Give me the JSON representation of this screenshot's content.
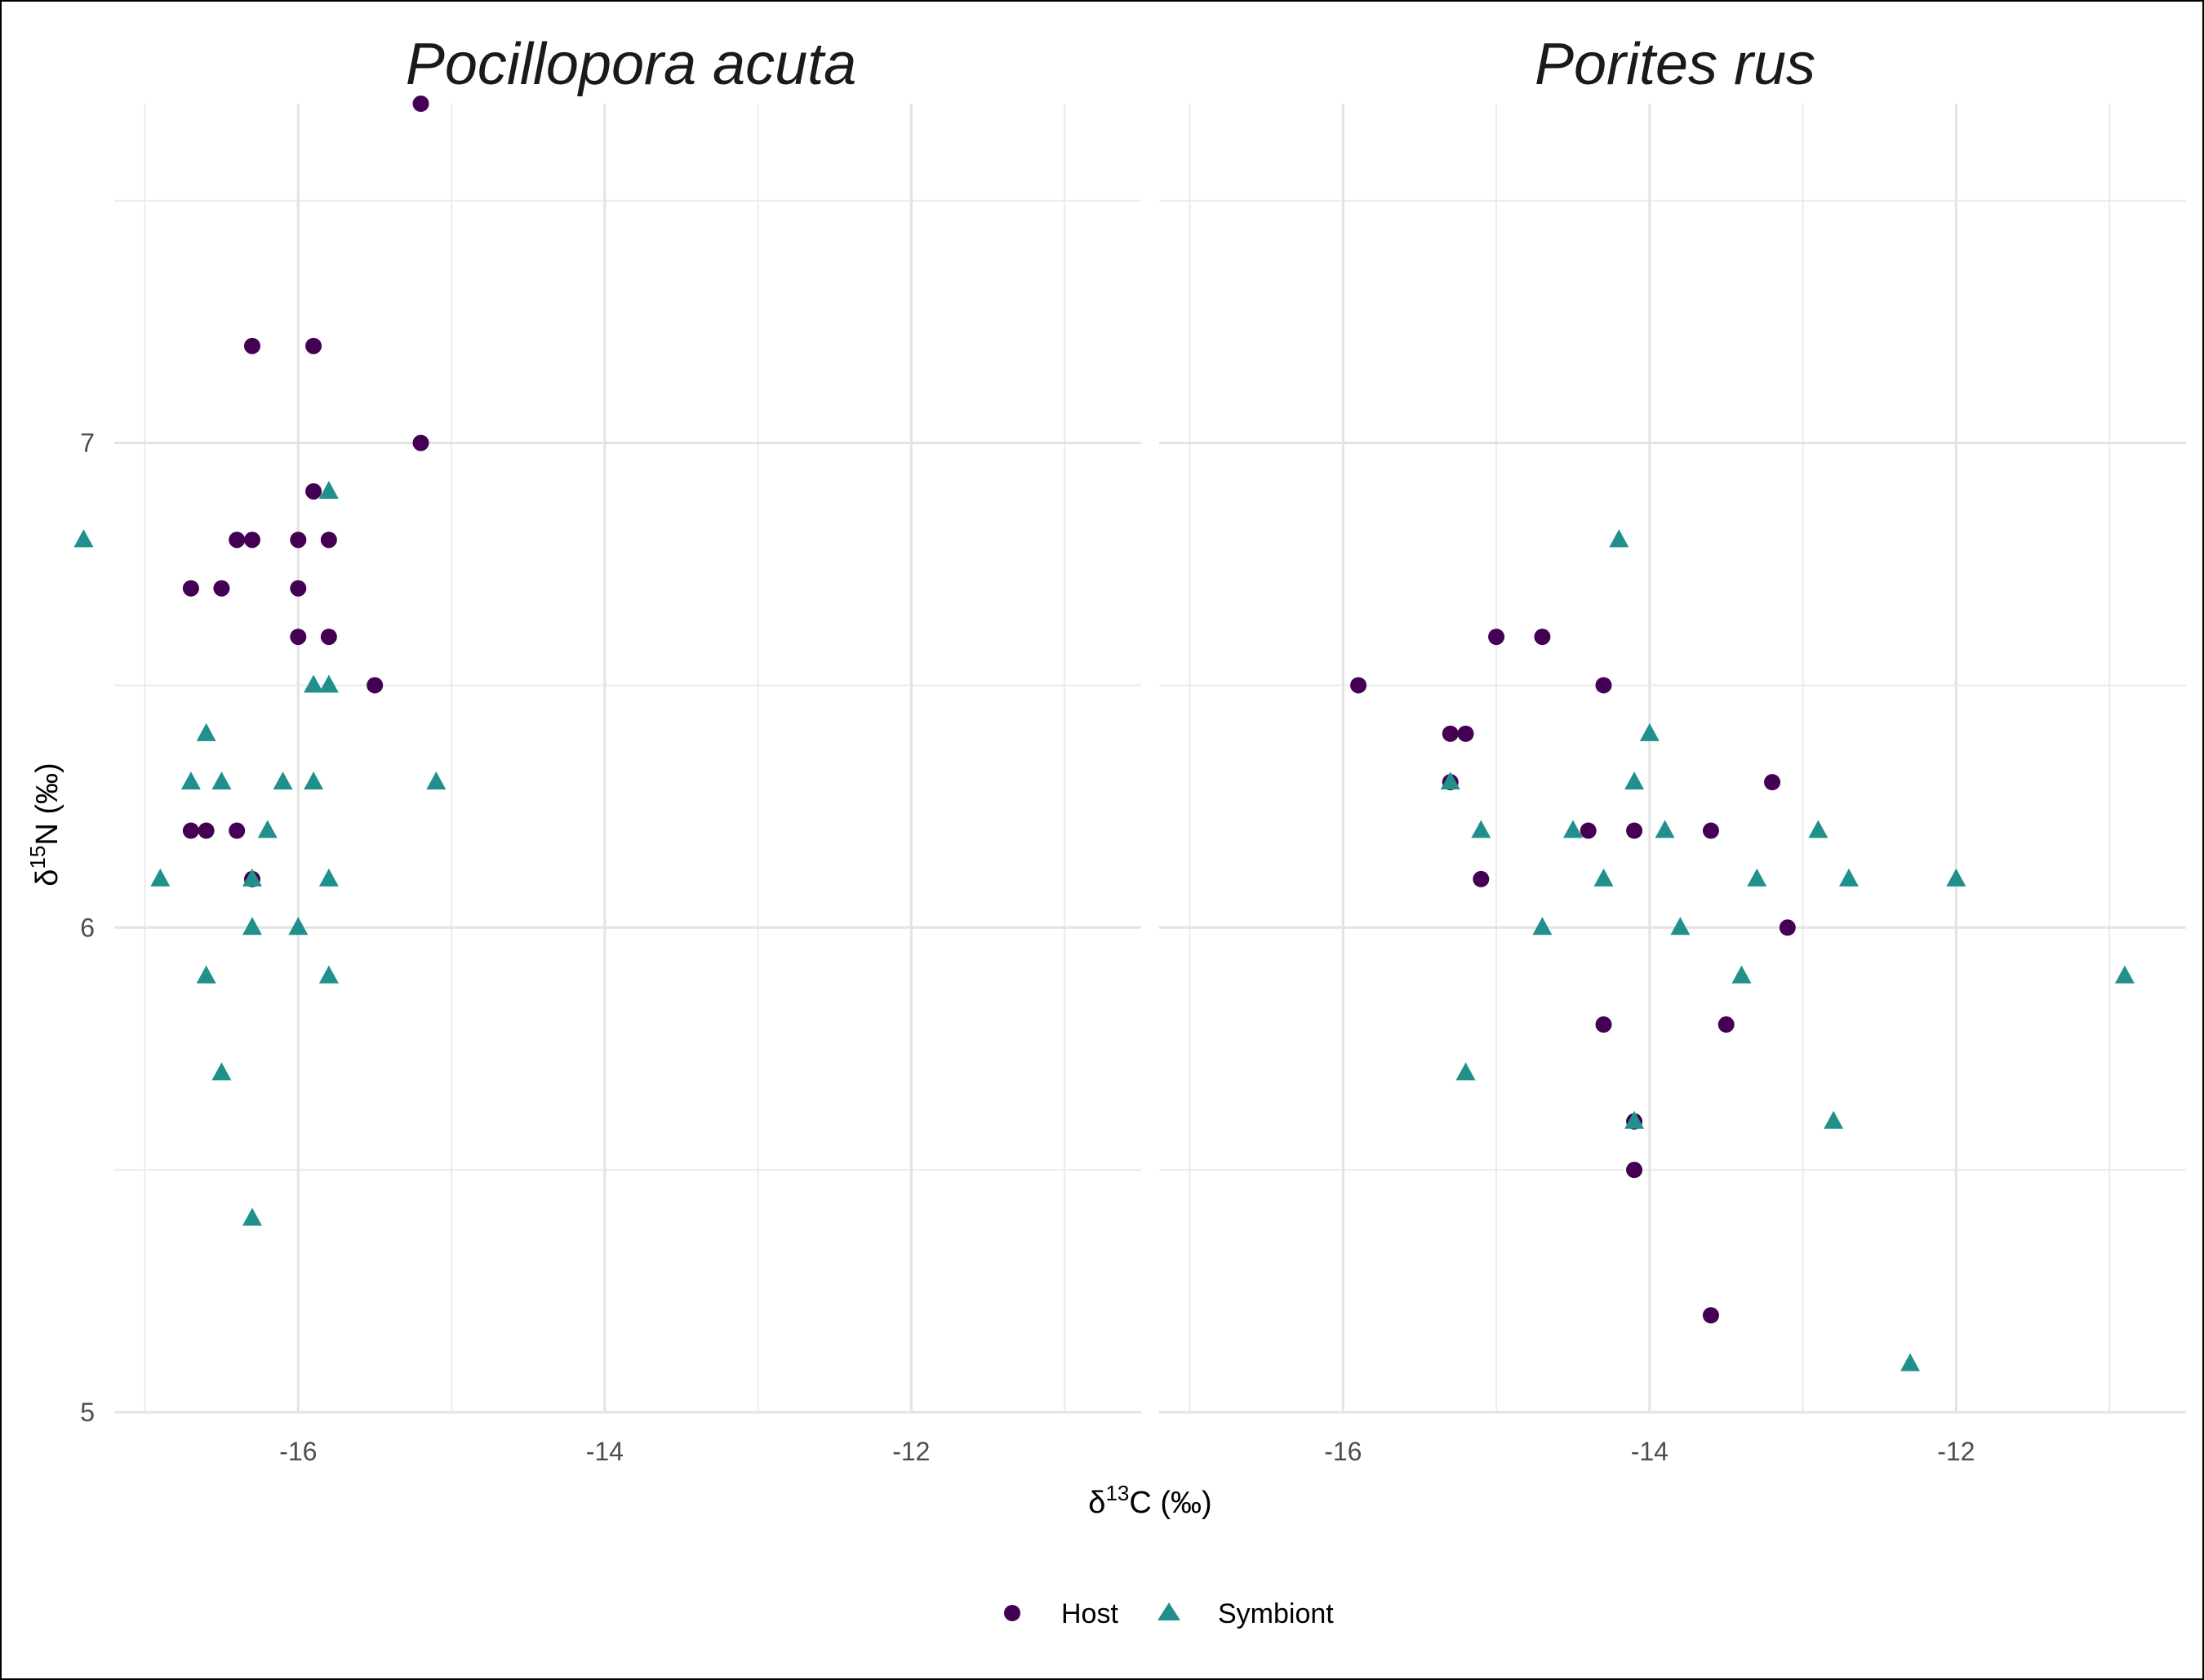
{
  "chart_data": {
    "type": "scatter",
    "xlabel_base": "δ",
    "xlabel_sup": "13",
    "xlabel_rest": "C (‰)",
    "ylabel_base": "δ",
    "ylabel_sup": "15",
    "ylabel_rest": "N (‰)",
    "xlim": [
      -17.2,
      -10.5
    ],
    "ylim": [
      5,
      7.7
    ],
    "x_ticks": [
      -16,
      -14,
      -12
    ],
    "x_tick_labels": [
      "-16",
      "-14",
      "-12"
    ],
    "y_ticks": [
      5,
      6,
      7
    ],
    "y_tick_labels": [
      "5",
      "6",
      "7"
    ],
    "grid": true,
    "legend_position": "bottom",
    "legend": [
      {
        "name": "Host",
        "shape": "circle",
        "color": "#440154"
      },
      {
        "name": "Symbiont",
        "shape": "triangle",
        "color": "#21908C"
      }
    ],
    "panels": [
      {
        "title": "Pocillopora acuta",
        "series": [
          {
            "name": "Host",
            "points": [
              [
                -15.2,
                7.7
              ],
              [
                -16.3,
                7.2
              ],
              [
                -15.9,
                7.2
              ],
              [
                -15.2,
                7.0
              ],
              [
                -15.9,
                6.9
              ],
              [
                -16.4,
                6.8
              ],
              [
                -16.3,
                6.8
              ],
              [
                -16.0,
                6.8
              ],
              [
                -15.8,
                6.8
              ],
              [
                -16.7,
                6.7
              ],
              [
                -16.5,
                6.7
              ],
              [
                -16.0,
                6.7
              ],
              [
                -16.0,
                6.6
              ],
              [
                -15.8,
                6.6
              ],
              [
                -15.5,
                6.5
              ],
              [
                -16.7,
                6.2
              ],
              [
                -16.6,
                6.2
              ],
              [
                -16.4,
                6.2
              ],
              [
                -16.3,
                6.1
              ]
            ]
          },
          {
            "name": "Symbiont",
            "points": [
              [
                -17.4,
                6.8
              ],
              [
                -15.8,
                6.9
              ],
              [
                -15.9,
                6.5
              ],
              [
                -15.8,
                6.5
              ],
              [
                -16.6,
                6.4
              ],
              [
                -16.7,
                6.3
              ],
              [
                -16.5,
                6.3
              ],
              [
                -16.1,
                6.3
              ],
              [
                -15.9,
                6.3
              ],
              [
                -15.1,
                6.3
              ],
              [
                -16.2,
                6.2
              ],
              [
                -16.9,
                6.1
              ],
              [
                -16.3,
                6.1
              ],
              [
                -15.8,
                6.1
              ],
              [
                -16.3,
                6.0
              ],
              [
                -16.0,
                6.0
              ],
              [
                -16.6,
                5.9
              ],
              [
                -15.8,
                5.9
              ],
              [
                -16.5,
                5.7
              ],
              [
                -16.3,
                5.4
              ]
            ]
          }
        ]
      },
      {
        "title": "Porites rus",
        "series": [
          {
            "name": "Host",
            "points": [
              [
                -15.9,
                6.5
              ],
              [
                -15.0,
                6.6
              ],
              [
                -14.7,
                6.6
              ],
              [
                -14.3,
                6.5
              ],
              [
                -15.3,
                6.4
              ],
              [
                -15.2,
                6.4
              ],
              [
                -15.3,
                6.3
              ],
              [
                -13.2,
                6.3
              ],
              [
                -14.4,
                6.2
              ],
              [
                -14.1,
                6.2
              ],
              [
                -13.6,
                6.2
              ],
              [
                -15.1,
                6.1
              ],
              [
                -13.1,
                6.0
              ],
              [
                -14.3,
                5.8
              ],
              [
                -13.5,
                5.8
              ],
              [
                -14.1,
                5.6
              ],
              [
                -14.1,
                5.5
              ],
              [
                -13.6,
                5.2
              ]
            ]
          },
          {
            "name": "Symbiont",
            "points": [
              [
                -14.2,
                6.8
              ],
              [
                -14.0,
                6.4
              ],
              [
                -15.3,
                6.3
              ],
              [
                -14.1,
                6.3
              ],
              [
                -15.1,
                6.2
              ],
              [
                -14.5,
                6.2
              ],
              [
                -13.9,
                6.2
              ],
              [
                -12.9,
                6.2
              ],
              [
                -14.3,
                6.1
              ],
              [
                -13.3,
                6.1
              ],
              [
                -12.7,
                6.1
              ],
              [
                -12.0,
                6.1
              ],
              [
                -14.7,
                6.0
              ],
              [
                -13.8,
                6.0
              ],
              [
                -13.4,
                5.9
              ],
              [
                -10.9,
                5.9
              ],
              [
                -15.2,
                5.7
              ],
              [
                -14.1,
                5.6
              ],
              [
                -12.8,
                5.6
              ],
              [
                -12.3,
                5.1
              ]
            ]
          }
        ]
      }
    ]
  }
}
